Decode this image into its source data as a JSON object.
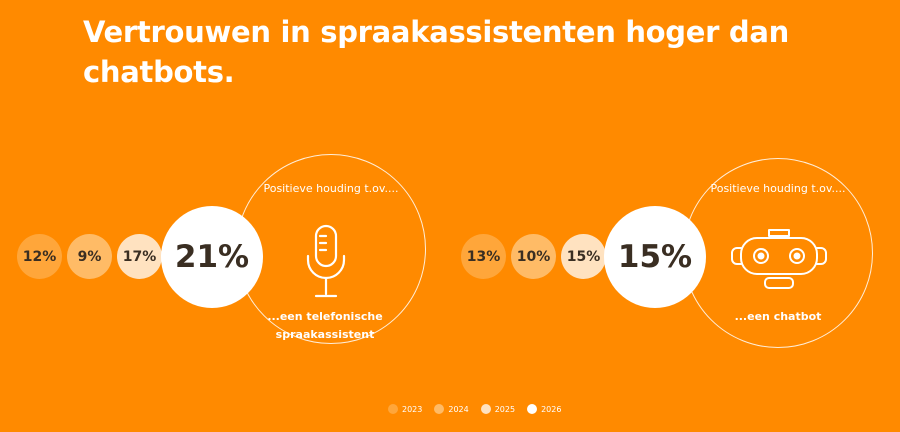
{
  "title": "Vertrouwen in spraakassistenten hoger dan chatbots.",
  "chart_data": [
    {
      "type": "bubble",
      "title": "...een telefonische spraakassistent",
      "ring_label": "Positieve houding t.ov....",
      "categories": [
        "2023",
        "2024",
        "2025",
        "2026"
      ],
      "values": [
        12,
        9,
        17,
        21
      ],
      "labels": [
        "12%",
        "9%",
        "17%",
        "21%"
      ],
      "icon": "microphone-icon"
    },
    {
      "type": "bubble",
      "title": "...een chatbot",
      "ring_label": "Positieve houding t.ov....",
      "categories": [
        "2023",
        "2024",
        "2025",
        "2026"
      ],
      "values": [
        13,
        10,
        15,
        15
      ],
      "labels": [
        "13%",
        "10%",
        "15%",
        "15%"
      ],
      "icon": "robot-icon"
    }
  ],
  "legend": [
    {
      "label": "2023",
      "color": "#FFA63A"
    },
    {
      "label": "2024",
      "color": "#FFBB66"
    },
    {
      "label": "2025",
      "color": "#FFE2C0"
    },
    {
      "label": "2026",
      "color": "#FFFFFF"
    }
  ],
  "colors": {
    "background": "#FF8A00",
    "text_dark": "#3a2e22",
    "text_light": "#FFFFFF"
  }
}
